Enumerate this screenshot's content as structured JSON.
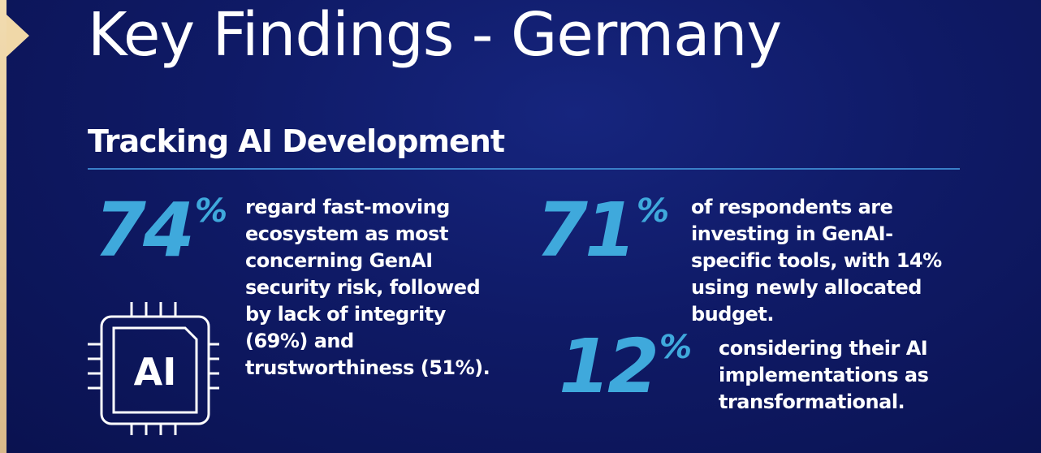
{
  "slide": {
    "title": "Key Findings - Germany",
    "subtitle": "Tracking AI Development"
  },
  "stats": [
    {
      "value": "74",
      "unit": "%",
      "text": "regard fast-moving ecosystem as most concerning GenAI security risk, followed by lack of integrity (69%) and trustworthiness (51%)."
    },
    {
      "value": "71",
      "unit": "%",
      "text": "of respondents are investing in GenAI-specific tools, with 14% using newly allocated budget."
    },
    {
      "value": "12",
      "unit": "%",
      "text": "considering their AI implementations as transformational."
    }
  ],
  "chip_icon": {
    "icon": "ai-chip-icon",
    "label": "AI"
  },
  "colors": {
    "background": "#0f1a66",
    "accent": "#3fa9dc",
    "divider": "#3a7fc8",
    "tab": "#f0d8a8"
  }
}
